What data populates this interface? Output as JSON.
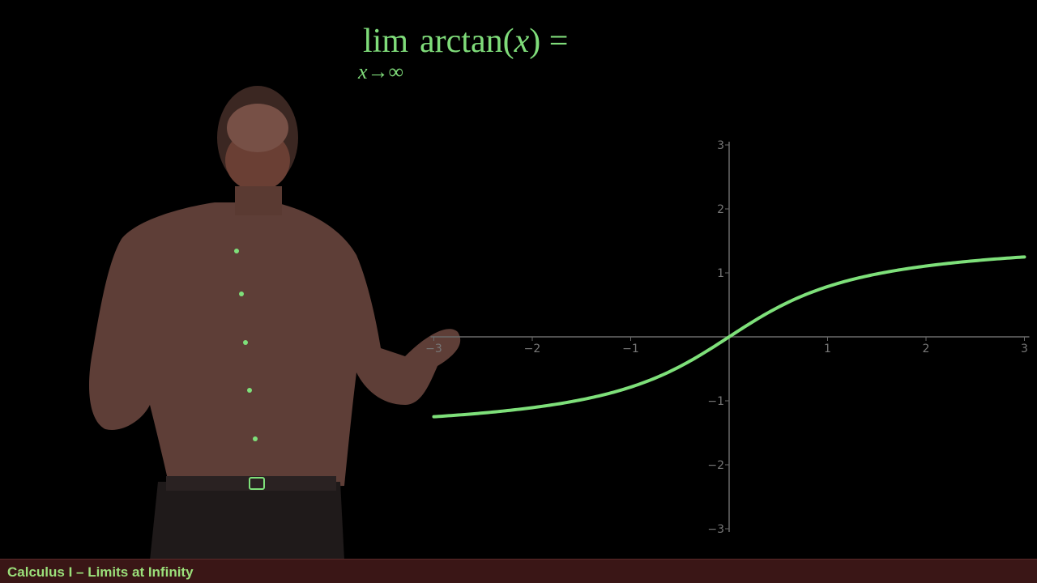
{
  "formula": {
    "lim": "lim",
    "sub_var": "x",
    "sub_arrow": "→∞",
    "expr_fn": "arctan(",
    "expr_arg": "x",
    "expr_close": ") ="
  },
  "footer": {
    "title": "Calculus I – Limits at Infinity"
  },
  "colors": {
    "curve": "#7ee07a",
    "axis": "#6a6a6a",
    "formula": "#7fdc7a",
    "footer_bg": "#3a1616",
    "footer_text": "#9be07a"
  },
  "chart_data": {
    "type": "line",
    "function": "arctan(x)",
    "x_ticks": [
      "−3",
      "−2",
      "−1",
      "1",
      "2",
      "3"
    ],
    "y_ticks": [
      "3",
      "2",
      "1",
      "−1",
      "−2",
      "−3"
    ],
    "xlim": [
      -3,
      3
    ],
    "ylim": [
      -3,
      3
    ],
    "series": [
      {
        "x": [
          -3,
          -2.5,
          -2,
          -1.5,
          -1,
          -0.75,
          -0.5,
          -0.25,
          0,
          0.25,
          0.5,
          0.75,
          1,
          1.5,
          2,
          2.5,
          3
        ],
        "y": [
          -1.249,
          -1.19,
          -1.107,
          -0.983,
          -0.785,
          -0.644,
          -0.464,
          -0.245,
          0,
          0.245,
          0.464,
          0.644,
          0.785,
          0.983,
          1.107,
          1.19,
          1.249
        ]
      }
    ]
  }
}
